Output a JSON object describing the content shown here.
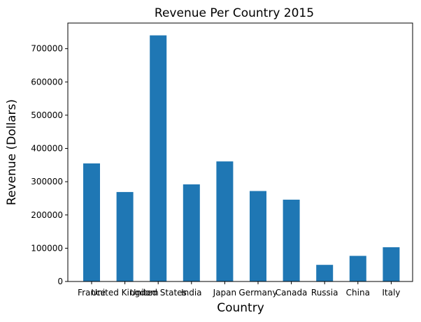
{
  "chart_data": {
    "type": "bar",
    "title": "Revenue Per Country 2015",
    "xlabel": "Country",
    "ylabel": "Revenue (Dollars)",
    "categories": [
      "France",
      "United Kingdom",
      "United States",
      "India",
      "Japan",
      "Germany",
      "Canada",
      "Russia",
      "China",
      "Italy"
    ],
    "values": [
      355000,
      269000,
      740000,
      292000,
      361000,
      272000,
      246000,
      50000,
      77000,
      103000
    ],
    "ylim": [
      0,
      777000
    ],
    "yticks": [
      0,
      100000,
      200000,
      300000,
      400000,
      500000,
      600000,
      700000
    ],
    "ytick_labels": [
      "0",
      "100000",
      "200000",
      "300000",
      "400000",
      "500000",
      "600000",
      "700000"
    ],
    "grid": false,
    "legend": "none",
    "colors": {
      "bar": "#1f77b4",
      "axis": "#000000",
      "background": "#ffffff"
    }
  }
}
